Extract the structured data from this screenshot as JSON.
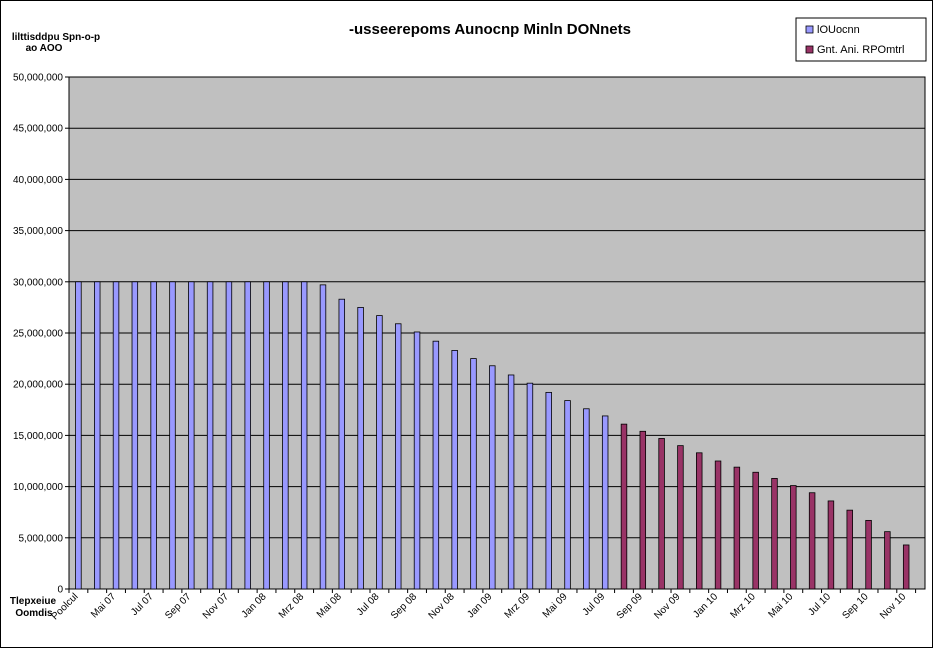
{
  "chart_data": {
    "type": "bar",
    "title": "-usseerepoms Aunocnp Minln DONnets",
    "ylabel_lines": [
      "lilttisddpu Spn-o-p",
      "ao AOO"
    ],
    "xlabel_lines": [
      "Tlepxeiue",
      "Oomdis"
    ],
    "ylim": [
      0,
      50000000
    ],
    "y_ticks": [
      0,
      5000000,
      10000000,
      15000000,
      20000000,
      25000000,
      30000000,
      35000000,
      40000000,
      45000000,
      50000000
    ],
    "y_tick_labels": [
      "0",
      "5,000,000",
      "10,000,000",
      "15,000,000",
      "20,000,000",
      "25,000,000",
      "30,000,000",
      "35,000,000",
      "40,000,000",
      "45,000,000",
      "50,000,000"
    ],
    "grid": true,
    "plot_background": "#c0c0c0",
    "legend_position": "top-right",
    "x_tick_labels": [
      "Poolcul",
      "Mai 07",
      "Jul 07",
      "Sep 07",
      "Nov 07",
      "Jan 08",
      "Mrz 08",
      "Mai 08",
      "Jul 08",
      "Sep 08",
      "Nov 08",
      "Jan 09",
      "Mrz 09",
      "Mai 09",
      "Jul 09",
      "Sep 09",
      "Nov 09",
      "Jan 10",
      "Mrz 10",
      "Mai 10",
      "Jul 10",
      "Sep 10",
      "Nov 10"
    ],
    "series": [
      {
        "name": "lOUocnn",
        "color": "#9999ff",
        "start_index": 0,
        "values": [
          30000000,
          30000000,
          30000000,
          30000000,
          30000000,
          30000000,
          30000000,
          30000000,
          30000000,
          30000000,
          30000000,
          30000000,
          30000000,
          29700000,
          28300000,
          27500000,
          26700000,
          25900000,
          25100000,
          24200000,
          23300000,
          22500000,
          21800000,
          20900000,
          20100000,
          19200000,
          18400000,
          17600000,
          16900000
        ]
      },
      {
        "name": "Gnt. Ani. RPOmtrl",
        "color": "#993366",
        "start_index": 29,
        "values": [
          16100000,
          15400000,
          14700000,
          14000000,
          13300000,
          12500000,
          11900000,
          11400000,
          10800000,
          10100000,
          9400000,
          8600000,
          7700000,
          6700000,
          5600000,
          4300000
        ]
      }
    ]
  }
}
